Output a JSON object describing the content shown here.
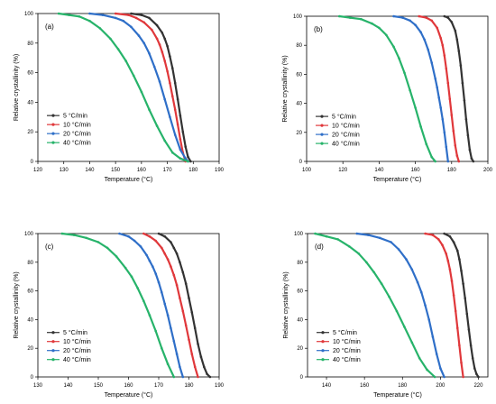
{
  "colors": {
    "s5": "#333333",
    "s10": "#e0383b",
    "s20": "#2f6fc8",
    "s40": "#27b36a"
  },
  "chart_data": [
    {
      "type": "line",
      "panel_label": "(a)",
      "xlabel": "Temperature (°C)",
      "ylabel": "Relative crystallinity (%)",
      "xlim": [
        120,
        190
      ],
      "ylim": [
        0,
        100
      ],
      "xticks": [
        120,
        130,
        140,
        150,
        160,
        170,
        180,
        190
      ],
      "yticks": [
        0,
        20,
        40,
        60,
        80,
        100
      ],
      "grid": false,
      "legend_position": "lower-left",
      "series": [
        {
          "name": "5 °C/min",
          "color": "#333333",
          "x": [
            156,
            160,
            163,
            166,
            168,
            169,
            170,
            171,
            172,
            173,
            174,
            175,
            176,
            177,
            178,
            179
          ],
          "y": [
            100,
            99,
            97,
            92,
            87,
            83,
            78,
            71,
            63,
            53,
            42,
            31,
            20,
            10,
            3,
            0
          ]
        },
        {
          "name": "10 °C/min",
          "color": "#e0383b",
          "x": [
            150,
            155,
            158,
            161,
            164,
            166,
            167,
            168,
            169,
            170,
            171,
            172,
            173,
            174,
            175,
            176,
            177
          ],
          "y": [
            100,
            99,
            97,
            94,
            89,
            83,
            79,
            74,
            68,
            61,
            53,
            44,
            35,
            25,
            15,
            6,
            0
          ]
        },
        {
          "name": "20 °C/min",
          "color": "#2f6fc8",
          "x": [
            140,
            145,
            150,
            153,
            156,
            159,
            161,
            163,
            165,
            167,
            169,
            171,
            173,
            175,
            177,
            178
          ],
          "y": [
            100,
            99,
            97,
            95,
            91,
            85,
            80,
            73,
            64,
            54,
            42,
            30,
            18,
            8,
            2,
            0
          ]
        },
        {
          "name": "40 °C/min",
          "color": "#27b36a",
          "x": [
            128,
            132,
            136,
            140,
            144,
            148,
            151,
            154,
            157,
            160,
            163,
            166,
            169,
            172,
            175,
            178
          ],
          "y": [
            100,
            99,
            98,
            95,
            90,
            83,
            76,
            68,
            58,
            47,
            35,
            24,
            14,
            6,
            2,
            0
          ]
        }
      ]
    },
    {
      "type": "line",
      "panel_label": "(b)",
      "xlabel": "Temperature (°C)",
      "ylabel": "Relative crystallinity (%)",
      "xlim": [
        100,
        200
      ],
      "ylim": [
        0,
        100
      ],
      "xticks": [
        100,
        120,
        140,
        160,
        180,
        200
      ],
      "yticks": [
        0,
        20,
        40,
        60,
        80,
        100
      ],
      "grid": false,
      "legend_position": "lower-left",
      "series": [
        {
          "name": "5 °C/min",
          "color": "#333333",
          "x": [
            176,
            178,
            180,
            182,
            183,
            184,
            185,
            186,
            187,
            188,
            189,
            190,
            191,
            192
          ],
          "y": [
            100,
            99,
            96,
            90,
            84,
            76,
            66,
            54,
            42,
            29,
            18,
            8,
            2,
            0
          ]
        },
        {
          "name": "10 °C/min",
          "color": "#e0383b",
          "x": [
            162,
            166,
            169,
            172,
            174,
            175,
            176,
            177,
            178,
            179,
            180,
            181,
            182,
            183,
            184
          ],
          "y": [
            100,
            99,
            97,
            92,
            85,
            80,
            73,
            64,
            54,
            43,
            32,
            21,
            11,
            4,
            0
          ]
        },
        {
          "name": "20 °C/min",
          "color": "#2f6fc8",
          "x": [
            148,
            153,
            157,
            160,
            163,
            165,
            167,
            169,
            171,
            172,
            173,
            174,
            175,
            176,
            177,
            178
          ],
          "y": [
            100,
            99,
            97,
            94,
            89,
            84,
            77,
            68,
            57,
            51,
            44,
            37,
            29,
            20,
            10,
            0
          ]
        },
        {
          "name": "40 °C/min",
          "color": "#27b36a",
          "x": [
            118,
            124,
            130,
            136,
            140,
            144,
            148,
            151,
            154,
            157,
            160,
            163,
            166,
            169,
            171
          ],
          "y": [
            100,
            99,
            98,
            95,
            92,
            87,
            79,
            71,
            61,
            49,
            37,
            24,
            12,
            3,
            0
          ]
        }
      ]
    },
    {
      "type": "line",
      "panel_label": "(c)",
      "xlabel": "Temperature (°C)",
      "ylabel": "Relative crystallinity (%)",
      "xlim": [
        130,
        190
      ],
      "ylim": [
        0,
        100
      ],
      "xticks": [
        130,
        140,
        150,
        160,
        170,
        180,
        190
      ],
      "yticks": [
        0,
        20,
        40,
        60,
        80,
        100
      ],
      "grid": false,
      "legend_position": "lower-left",
      "series": [
        {
          "name": "5 °C/min",
          "color": "#333333",
          "x": [
            170,
            172,
            174,
            175,
            176,
            177,
            178,
            179,
            180,
            181,
            182,
            183,
            184,
            185,
            186,
            187
          ],
          "y": [
            100,
            98,
            94,
            90,
            86,
            80,
            73,
            65,
            55,
            45,
            34,
            23,
            14,
            7,
            2,
            0
          ]
        },
        {
          "name": "10 °C/min",
          "color": "#e0383b",
          "x": [
            165,
            167,
            169,
            171,
            172,
            173,
            174,
            175,
            176,
            177,
            178,
            179,
            180,
            181,
            182,
            183
          ],
          "y": [
            100,
            98,
            95,
            90,
            86,
            82,
            77,
            71,
            64,
            55,
            46,
            36,
            26,
            16,
            7,
            0
          ]
        },
        {
          "name": "20 °C/min",
          "color": "#2f6fc8",
          "x": [
            157,
            160,
            162,
            164,
            166,
            167,
            168,
            169,
            170,
            171,
            172,
            173,
            174,
            175,
            176,
            177,
            178
          ],
          "y": [
            100,
            98,
            95,
            91,
            85,
            81,
            77,
            72,
            66,
            59,
            51,
            43,
            34,
            25,
            16,
            7,
            0
          ]
        },
        {
          "name": "40 °C/min",
          "color": "#27b36a",
          "x": [
            138,
            142,
            146,
            150,
            153,
            156,
            159,
            161,
            163,
            165,
            167,
            169,
            171,
            173,
            175
          ],
          "y": [
            100,
            99,
            97,
            94,
            90,
            84,
            76,
            70,
            62,
            53,
            43,
            32,
            20,
            9,
            0
          ]
        }
      ]
    },
    {
      "type": "line",
      "panel_label": "(d)",
      "xlabel": "Temperature (°C)",
      "ylabel": "Relative crystallinity (%)",
      "xlim": [
        130,
        225
      ],
      "ylim": [
        0,
        100
      ],
      "xticks": [
        140,
        160,
        180,
        200,
        220
      ],
      "yticks": [
        0,
        20,
        40,
        60,
        80,
        100
      ],
      "grid": false,
      "legend_position": "lower-left",
      "series": [
        {
          "name": "5 °C/min",
          "color": "#333333",
          "x": [
            202,
            205,
            207,
            209,
            210,
            211,
            212,
            213,
            214,
            215,
            216,
            217,
            218,
            219,
            220
          ],
          "y": [
            100,
            98,
            94,
            88,
            82,
            74,
            65,
            55,
            44,
            33,
            22,
            13,
            6,
            2,
            0
          ]
        },
        {
          "name": "10 °C/min",
          "color": "#e0383b",
          "x": [
            192,
            196,
            199,
            201,
            203,
            204,
            205,
            206,
            207,
            208,
            209,
            210,
            211,
            212
          ],
          "y": [
            100,
            99,
            96,
            92,
            86,
            81,
            75,
            67,
            57,
            46,
            34,
            22,
            10,
            0
          ]
        },
        {
          "name": "20 °C/min",
          "color": "#2f6fc8",
          "x": [
            156,
            162,
            168,
            174,
            178,
            182,
            185,
            188,
            190,
            192,
            194,
            196,
            198,
            200,
            202
          ],
          "y": [
            100,
            99,
            97,
            94,
            89,
            82,
            75,
            66,
            59,
            50,
            40,
            28,
            16,
            6,
            0
          ]
        },
        {
          "name": "40 °C/min",
          "color": "#27b36a",
          "x": [
            134,
            140,
            146,
            152,
            157,
            161,
            165,
            169,
            173,
            177,
            181,
            185,
            189,
            193,
            197
          ],
          "y": [
            100,
            98,
            96,
            91,
            86,
            80,
            73,
            65,
            56,
            46,
            35,
            24,
            13,
            5,
            0
          ]
        }
      ]
    }
  ]
}
